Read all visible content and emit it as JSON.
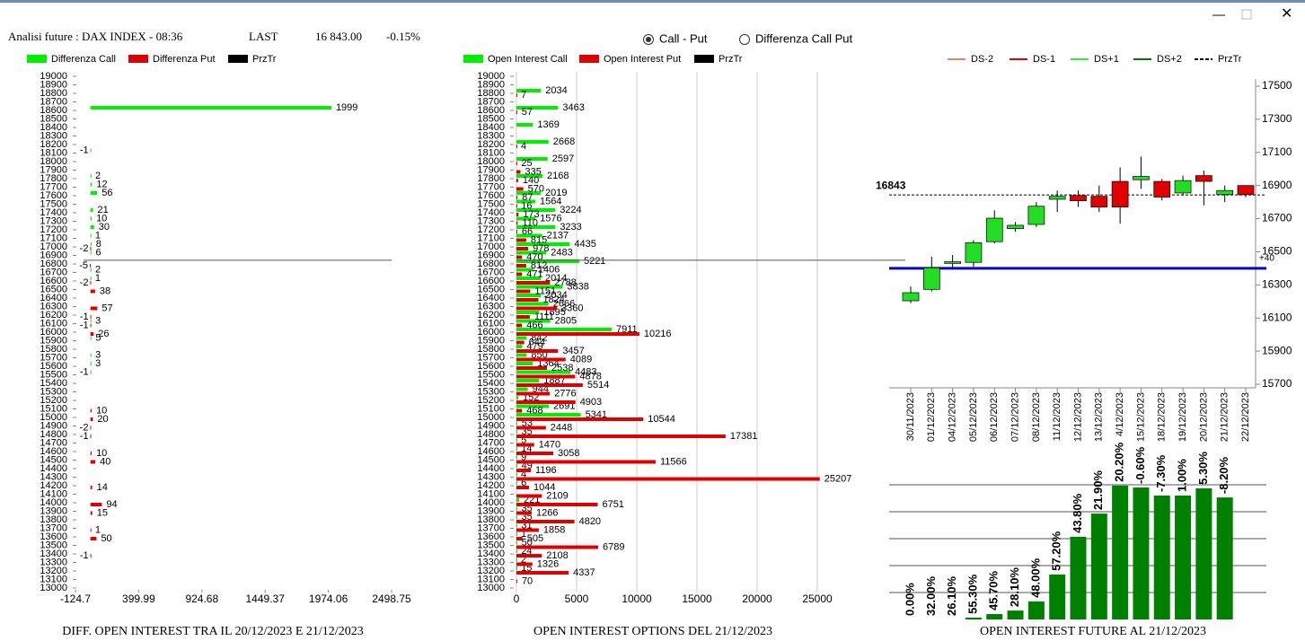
{
  "header": {
    "title": "Analisi future : DAX INDEX - 08:36",
    "last_label": "LAST",
    "last_value": "16 843.00",
    "change": "-0.15%"
  },
  "controls": {
    "options": [
      "Call - Put",
      "Differenza Call Put"
    ]
  },
  "chart_data": [
    {
      "type": "hbar",
      "title": "DIFF. OPEN INTEREST TRA IL 20/12/2023 E 21/12/2023",
      "xlim": [
        -124.7,
        2498.75
      ],
      "xticks": [
        -124.7,
        399.99,
        924.68,
        1449.37,
        1974.06,
        2498.75
      ],
      "ylim": [
        13000,
        19000
      ],
      "yticks": [
        13000,
        13100,
        13200,
        13300,
        13400,
        13500,
        13600,
        13700,
        13800,
        13900,
        14000,
        14100,
        14200,
        14300,
        14400,
        14500,
        14600,
        14700,
        14800,
        14900,
        15000,
        15100,
        15200,
        15300,
        15400,
        15500,
        15600,
        15700,
        15800,
        15900,
        16000,
        16100,
        16200,
        16300,
        16400,
        16500,
        16600,
        16700,
        16800,
        16900,
        17000,
        17100,
        17200,
        17300,
        17400,
        17500,
        17600,
        17700,
        17800,
        17900,
        18000,
        18100,
        18200,
        18300,
        18400,
        18500,
        18600,
        18700,
        18800,
        18900,
        19000
      ],
      "grid": false,
      "series": [
        {
          "name": "Differenza Call",
          "color": "#00ee00",
          "y": [
            18600,
            18100,
            17800,
            17700,
            17600,
            17400,
            17300,
            17200,
            17100,
            17000,
            16900,
            16700,
            16600,
            16100,
            15900,
            15700,
            15600,
            15500
          ],
          "values": [
            1999,
            -1,
            2,
            12,
            56,
            21,
            10,
            30,
            1,
            8,
            6,
            2,
            1,
            3,
            5,
            3,
            3,
            -1
          ]
        },
        {
          "name": "Differenza Put",
          "color": "#e00000",
          "y": [
            17000,
            16800,
            16600,
            16500,
            16300,
            16200,
            16100,
            16000,
            15100,
            15000,
            14900,
            14800,
            14600,
            14500,
            14200,
            14000,
            13900,
            13700,
            13600,
            13400
          ],
          "values": [
            -2,
            -5,
            -2,
            38,
            57,
            -1,
            -1,
            26,
            10,
            20,
            -2,
            -1,
            10,
            40,
            14,
            94,
            15,
            1,
            50,
            -1
          ]
        },
        {
          "name": "PrzTr",
          "color": "#000000",
          "value": 16843
        }
      ]
    },
    {
      "type": "hbar",
      "title": "OPEN INTEREST OPTIONS DEL 21/12/2023",
      "xlim": [
        0,
        25000
      ],
      "xticks": [
        0,
        5000,
        10000,
        15000,
        20000,
        25000
      ],
      "ylim": [
        13000,
        19000
      ],
      "yticks": [
        13000,
        13100,
        13200,
        13300,
        13400,
        13500,
        13600,
        13700,
        13800,
        13900,
        14000,
        14100,
        14200,
        14300,
        14400,
        14500,
        14600,
        14700,
        14800,
        14900,
        15000,
        15100,
        15200,
        15300,
        15400,
        15500,
        15600,
        15700,
        15800,
        15900,
        16000,
        16100,
        16200,
        16300,
        16400,
        16500,
        16600,
        16700,
        16800,
        16900,
        17000,
        17100,
        17200,
        17300,
        17400,
        17500,
        17600,
        17700,
        17800,
        17900,
        18000,
        18100,
        18200,
        18300,
        18400,
        18500,
        18600,
        18700,
        18800,
        18900,
        19000
      ],
      "grid": true,
      "series": [
        {
          "name": "Open Interest Call",
          "color": "#00ee00",
          "y": [
            18800,
            18600,
            18400,
            18200,
            18000,
            17800,
            17600,
            17500,
            17400,
            17300,
            17200,
            17100,
            17000,
            16900,
            16800,
            16700,
            16600,
            16500,
            16400,
            16300,
            16200,
            16100,
            16000,
            15900,
            15800,
            15700,
            15600,
            15500,
            15400,
            15300,
            15200,
            15100,
            15000,
            14900,
            14800,
            14700,
            14600,
            14500,
            14400,
            14300,
            14200,
            14000,
            13900,
            13800,
            13700,
            13600,
            13500,
            13400,
            13300,
            13200
          ],
          "values": [
            2034,
            3463,
            1369,
            2668,
            2597,
            2168,
            2019,
            1564,
            3224,
            1576,
            3233,
            2137,
            4435,
            2483,
            5221,
            1406,
            2014,
            3838,
            2034,
            2666,
            1895,
            2805,
            7911,
            842,
            479,
            850,
            1364,
            4483,
            1887,
            944,
            152,
            2691,
            5341,
            53,
            35,
            5,
            14,
            9,
            49,
            4,
            6,
            221,
            35,
            35,
            31,
            1,
            50,
            24,
            2,
            15
          ]
        },
        {
          "name": "Open Interest Put",
          "color": "#e00000",
          "y": [
            18800,
            18600,
            18200,
            18000,
            17900,
            17800,
            17700,
            17600,
            17500,
            17400,
            17300,
            17200,
            17100,
            17000,
            16900,
            16800,
            16700,
            16600,
            16500,
            16400,
            16300,
            16200,
            16100,
            16000,
            15900,
            15800,
            15700,
            15600,
            15500,
            15400,
            15300,
            15200,
            15100,
            15000,
            14900,
            14800,
            14700,
            14600,
            14500,
            14400,
            14300,
            14200,
            14100,
            14000,
            13900,
            13800,
            13700,
            13600,
            13500,
            13400,
            13300,
            13200,
            13100
          ],
          "values": [
            7,
            57,
            4,
            25,
            335,
            140,
            570,
            87,
            16,
            173,
            110,
            66,
            815,
            978,
            470,
            812,
            471,
            2788,
            1151,
            1824,
            3360,
            1111,
            466,
            10216,
            644,
            3457,
            4089,
            2538,
            4878,
            5514,
            2776,
            4903,
            468,
            10544,
            2448,
            17381,
            1470,
            3058,
            11566,
            1196,
            25207,
            1044,
            2109,
            6751,
            1266,
            4820,
            1858,
            505,
            6789,
            2108,
            1326,
            4337,
            70
          ]
        },
        {
          "name": "PrzTr",
          "color": "#000000",
          "value": 16843
        }
      ]
    },
    {
      "type": "candlestick",
      "x": [
        "30/11/2023",
        "01/12/2023",
        "04/12/2023",
        "05/12/2023",
        "06/12/2023",
        "07/12/2023",
        "08/12/2023",
        "11/12/2023",
        "12/12/2023",
        "13/12/2023",
        "4/12/2023",
        "15/12/2023",
        "18/12/2023",
        "19/12/2023",
        "20/12/2023",
        "21/12/2023",
        "22/12/2023"
      ],
      "open": [
        16204,
        16273,
        16430,
        16436,
        16561,
        16640,
        16665,
        16817,
        16840,
        16835,
        16925,
        16935,
        16925,
        16855,
        16960,
        16845,
        16900
      ],
      "high": [
        16290,
        16470,
        16480,
        16570,
        16750,
        16680,
        16800,
        16870,
        16870,
        16900,
        17010,
        17075,
        16940,
        16960,
        16990,
        16900,
        16900
      ],
      "low": [
        16190,
        16260,
        16400,
        16410,
        16550,
        16620,
        16650,
        16740,
        16770,
        16740,
        16670,
        16880,
        16810,
        16840,
        16780,
        16800,
        16830
      ],
      "close": [
        16253,
        16403,
        16440,
        16555,
        16703,
        16660,
        16775,
        16835,
        16808,
        16770,
        16770,
        16955,
        16830,
        16930,
        16925,
        16870,
        16845
      ],
      "up_color": "#22dd22",
      "down_color": "#e00000",
      "ylim": [
        15700,
        17500
      ],
      "yticks": [
        15700,
        15900,
        16100,
        16300,
        16500,
        16700,
        16900,
        17100,
        17300,
        17500
      ],
      "legend": [
        {
          "name": "DS-2",
          "color": "#f08060"
        },
        {
          "name": "DS-1",
          "color": "#e00000"
        },
        {
          "name": "DS+1",
          "color": "#33ee33"
        },
        {
          "name": "DS+2",
          "color": "#007700"
        },
        {
          "name": "PrzTr",
          "color": "#000000",
          "dash": true
        }
      ],
      "reference_lines": [
        {
          "value": 16843,
          "label": "16843",
          "color": "#000000",
          "dash": true
        },
        {
          "value": 16400,
          "label": "+40",
          "color": "#0000cc",
          "dash": false
        }
      ]
    },
    {
      "type": "bar",
      "title": "OPEN INTEREST FUTURE AL 21/12/2023",
      "values": [
        0,
        0,
        0,
        0.07,
        0.2,
        0.33,
        0.67,
        1.67,
        3.07,
        3.93,
        4.97,
        4.9,
        4.6,
        4.6,
        4.87,
        4.53
      ],
      "value_labels": [
        "0.00%",
        "32.00%",
        "26.10%",
        "55.30%",
        "45.70%",
        "28.10%",
        "48.00%",
        "57.20%",
        "43.80%",
        "21.90%",
        "20.20%",
        "-0.60%",
        "-7.30%",
        "1.00%",
        "5.30%",
        "-8.20%"
      ],
      "color": "#008000",
      "ylim": [
        0,
        5
      ],
      "gridlines": [
        1,
        2,
        3,
        4,
        5
      ]
    }
  ]
}
